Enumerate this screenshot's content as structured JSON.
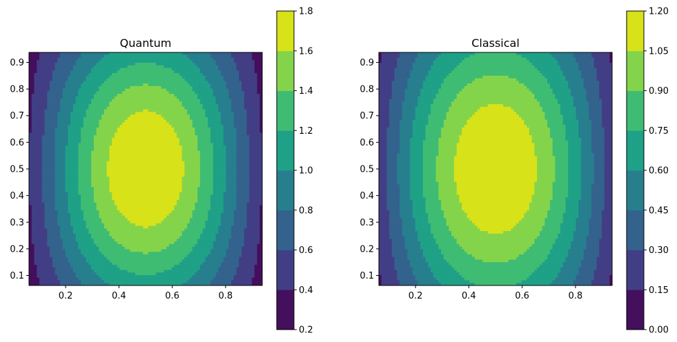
{
  "chart_data": [
    {
      "type": "contourf",
      "title": "Quantum",
      "xlabel": "",
      "ylabel": "",
      "xlim": [
        0.0625,
        0.9375
      ],
      "ylim": [
        0.0625,
        0.9375
      ],
      "xticks": [
        "0.2",
        "0.4",
        "0.6",
        "0.8"
      ],
      "xtick_values": [
        0.2,
        0.4,
        0.6,
        0.8
      ],
      "yticks": [
        "0.1",
        "0.2",
        "0.3",
        "0.4",
        "0.5",
        "0.6",
        "0.7",
        "0.8",
        "0.9"
      ],
      "ytick_values": [
        0.1,
        0.2,
        0.3,
        0.4,
        0.5,
        0.6,
        0.7,
        0.8,
        0.9
      ],
      "colorbar_levels": [
        "0.2",
        "0.4",
        "0.6",
        "0.8",
        "1.0",
        "1.2",
        "1.4",
        "1.6",
        "1.8"
      ],
      "colorbar_level_values": [
        0.2,
        0.4,
        0.6,
        0.8,
        1.0,
        1.2,
        1.4,
        1.6,
        1.8
      ],
      "field": "0.2 + 1.6 * sin(pi*x)^1.3 * (0.45 + 0.55*sin(pi*y))"
    },
    {
      "type": "contourf",
      "title": "Classical",
      "xlabel": "",
      "ylabel": "",
      "xlim": [
        0.0625,
        0.9375
      ],
      "ylim": [
        0.0625,
        0.9375
      ],
      "xticks": [
        "0.2",
        "0.4",
        "0.6",
        "0.8"
      ],
      "xtick_values": [
        0.2,
        0.4,
        0.6,
        0.8
      ],
      "yticks": [
        "0.1",
        "0.2",
        "0.3",
        "0.4",
        "0.5",
        "0.6",
        "0.7",
        "0.8",
        "0.9"
      ],
      "ytick_values": [
        0.1,
        0.2,
        0.3,
        0.4,
        0.5,
        0.6,
        0.7,
        0.8,
        0.9
      ],
      "colorbar_levels": [
        "0.00",
        "0.15",
        "0.30",
        "0.45",
        "0.60",
        "0.75",
        "0.90",
        "1.05",
        "1.20"
      ],
      "colorbar_level_values": [
        0.0,
        0.15,
        0.3,
        0.45,
        0.6,
        0.75,
        0.9,
        1.05,
        1.2
      ],
      "field": "1.2 * sin(pi*x)^1.1 * (0.55 + 0.45*sin(pi*y))"
    }
  ],
  "colors": {
    "viridis_bands": [
      "#440f5d",
      "#423e85",
      "#33638d",
      "#277f8e",
      "#1fa187",
      "#3fbc73",
      "#84d44b",
      "#d8e219"
    ]
  }
}
